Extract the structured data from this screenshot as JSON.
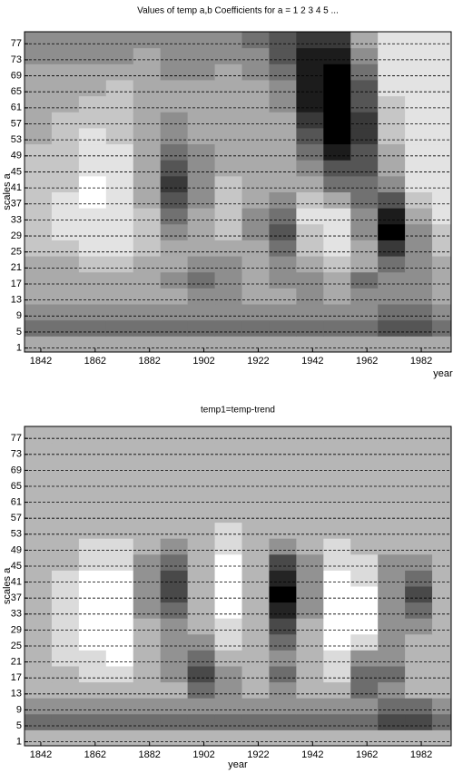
{
  "chart_data": [
    {
      "type": "heatmap",
      "title": "Values of temp a,b Coefficients for a =  1 2 3 4 5 ...",
      "xlabel": "year",
      "ylabel": "scales a",
      "colormap": "gray",
      "grid": true,
      "x": [
        1841,
        1851,
        1861,
        1871,
        1881,
        1891,
        1901,
        1911,
        1921,
        1931,
        1941,
        1951,
        1961,
        1971,
        1981,
        1991
      ],
      "y": [
        2,
        6,
        10,
        14,
        18,
        22,
        26,
        30,
        34,
        38,
        42,
        46,
        50,
        54,
        58,
        62,
        66,
        70,
        74,
        78
      ],
      "values": [
        [
          3,
          3,
          3,
          3,
          3,
          3,
          3,
          3,
          3,
          3,
          3,
          3,
          3,
          3,
          3,
          3
        ],
        [
          5,
          5,
          5,
          5,
          5,
          5,
          5,
          5,
          5,
          5,
          5,
          5,
          5,
          6,
          6,
          5
        ],
        [
          4,
          4,
          4,
          4,
          4,
          4,
          4,
          4,
          4,
          4,
          4,
          4,
          4,
          5,
          5,
          4
        ],
        [
          3,
          3,
          3,
          3,
          3,
          3,
          4,
          4,
          3,
          3,
          4,
          3,
          4,
          4,
          4,
          3
        ],
        [
          3,
          3,
          3,
          3,
          3,
          4,
          5,
          4,
          3,
          4,
          4,
          3,
          5,
          4,
          4,
          3
        ],
        [
          3,
          3,
          2,
          2,
          3,
          3,
          4,
          4,
          3,
          4,
          3,
          2,
          3,
          5,
          4,
          3
        ],
        [
          2,
          2,
          1,
          1,
          2,
          3,
          3,
          3,
          3,
          5,
          2,
          1,
          3,
          7,
          4,
          2
        ],
        [
          2,
          1,
          1,
          1,
          2,
          4,
          3,
          2,
          4,
          6,
          2,
          1,
          4,
          9,
          4,
          2
        ],
        [
          2,
          1,
          1,
          1,
          2,
          5,
          3,
          2,
          4,
          5,
          1,
          1,
          4,
          8,
          3,
          1
        ],
        [
          2,
          1,
          0,
          1,
          3,
          6,
          4,
          2,
          3,
          4,
          2,
          3,
          5,
          6,
          2,
          1
        ],
        [
          2,
          2,
          0,
          1,
          3,
          7,
          4,
          2,
          3,
          3,
          3,
          5,
          5,
          4,
          1,
          1
        ],
        [
          2,
          2,
          1,
          1,
          3,
          6,
          4,
          3,
          3,
          3,
          4,
          6,
          6,
          3,
          1,
          1
        ],
        [
          2,
          2,
          1,
          1,
          3,
          5,
          4,
          3,
          3,
          3,
          5,
          8,
          6,
          3,
          1,
          1
        ],
        [
          3,
          2,
          1,
          2,
          3,
          4,
          3,
          3,
          3,
          3,
          6,
          9,
          7,
          2,
          1,
          1
        ],
        [
          3,
          2,
          2,
          2,
          3,
          4,
          3,
          3,
          3,
          3,
          7,
          9,
          7,
          2,
          1,
          1
        ],
        [
          3,
          3,
          2,
          2,
          3,
          3,
          3,
          3,
          3,
          4,
          8,
          9,
          6,
          2,
          1,
          1
        ],
        [
          3,
          3,
          3,
          2,
          3,
          3,
          3,
          3,
          3,
          4,
          8,
          9,
          6,
          1,
          1,
          1
        ],
        [
          3,
          3,
          3,
          3,
          3,
          4,
          4,
          3,
          4,
          5,
          8,
          9,
          5,
          1,
          1,
          1
        ],
        [
          4,
          4,
          4,
          4,
          3,
          4,
          4,
          4,
          4,
          6,
          8,
          8,
          4,
          1,
          1,
          1
        ],
        [
          4,
          4,
          4,
          4,
          4,
          4,
          4,
          4,
          5,
          6,
          7,
          7,
          3,
          1,
          1,
          1
        ]
      ],
      "xlim": [
        1836,
        1993
      ],
      "ylim": [
        0,
        80
      ],
      "xticks": [
        1842,
        1862,
        1882,
        1902,
        1922,
        1942,
        1962,
        1982
      ],
      "yticks": [
        1,
        5,
        9,
        13,
        17,
        21,
        25,
        29,
        33,
        37,
        41,
        45,
        49,
        53,
        57,
        61,
        65,
        69,
        73,
        77
      ]
    },
    {
      "type": "heatmap",
      "title": "temp1=temp-trend",
      "xlabel": "year",
      "ylabel": "scales a",
      "colormap": "gray",
      "grid": true,
      "x": [
        1841,
        1851,
        1861,
        1871,
        1881,
        1891,
        1901,
        1911,
        1921,
        1931,
        1941,
        1951,
        1961,
        1971,
        1981,
        1991
      ],
      "y": [
        2,
        6,
        10,
        14,
        18,
        22,
        26,
        30,
        34,
        38,
        42,
        46,
        50,
        54,
        58,
        62,
        66,
        70,
        74,
        78
      ],
      "values": [
        [
          3,
          3,
          3,
          3,
          3,
          3,
          3,
          3,
          3,
          3,
          3,
          3,
          3,
          3,
          3,
          3
        ],
        [
          5,
          5,
          5,
          5,
          5,
          5,
          5,
          5,
          5,
          5,
          5,
          5,
          5,
          6,
          6,
          5
        ],
        [
          4,
          4,
          4,
          4,
          4,
          4,
          4,
          4,
          4,
          4,
          4,
          4,
          4,
          5,
          5,
          4
        ],
        [
          3,
          3,
          3,
          3,
          3,
          3,
          5,
          4,
          3,
          4,
          3,
          3,
          5,
          4,
          3,
          3
        ],
        [
          3,
          3,
          2,
          2,
          3,
          4,
          6,
          4,
          3,
          5,
          3,
          2,
          5,
          5,
          3,
          3
        ],
        [
          3,
          2,
          2,
          1,
          3,
          4,
          5,
          3,
          3,
          4,
          3,
          2,
          4,
          4,
          3,
          3
        ],
        [
          3,
          2,
          1,
          1,
          3,
          4,
          4,
          2,
          3,
          5,
          3,
          1,
          2,
          4,
          3,
          3
        ],
        [
          3,
          2,
          1,
          1,
          3,
          4,
          3,
          2,
          3,
          6,
          3,
          1,
          1,
          4,
          4,
          3
        ],
        [
          3,
          2,
          1,
          1,
          4,
          5,
          3,
          1,
          3,
          7,
          4,
          1,
          1,
          4,
          5,
          3
        ],
        [
          3,
          2,
          1,
          1,
          4,
          6,
          3,
          1,
          3,
          8,
          4,
          1,
          1,
          4,
          6,
          3
        ],
        [
          3,
          2,
          1,
          1,
          4,
          6,
          3,
          1,
          3,
          7,
          4,
          1,
          2,
          4,
          5,
          3
        ],
        [
          3,
          3,
          2,
          2,
          4,
          5,
          3,
          1,
          3,
          6,
          4,
          2,
          2,
          4,
          4,
          3
        ],
        [
          3,
          3,
          2,
          2,
          3,
          4,
          3,
          2,
          3,
          4,
          3,
          2,
          3,
          3,
          3,
          3
        ],
        [
          3,
          3,
          3,
          3,
          3,
          3,
          3,
          2,
          3,
          3,
          3,
          3,
          3,
          3,
          3,
          3
        ],
        [
          3,
          3,
          3,
          3,
          3,
          3,
          3,
          3,
          3,
          3,
          3,
          3,
          3,
          3,
          3,
          3
        ],
        [
          3,
          3,
          3,
          3,
          3,
          3,
          3,
          3,
          3,
          3,
          3,
          3,
          3,
          3,
          3,
          3
        ],
        [
          3,
          3,
          3,
          3,
          3,
          3,
          3,
          3,
          3,
          3,
          3,
          3,
          3,
          3,
          3,
          3
        ],
        [
          3,
          3,
          3,
          3,
          3,
          3,
          3,
          3,
          3,
          3,
          3,
          3,
          3,
          3,
          3,
          3
        ],
        [
          3,
          3,
          3,
          3,
          3,
          3,
          3,
          3,
          3,
          3,
          3,
          3,
          3,
          3,
          3,
          3
        ],
        [
          3,
          3,
          3,
          3,
          3,
          3,
          3,
          3,
          3,
          3,
          3,
          3,
          3,
          3,
          3,
          3
        ]
      ],
      "xlim": [
        1836,
        1993
      ],
      "ylim": [
        0,
        80
      ],
      "xticks": [
        1842,
        1862,
        1882,
        1902,
        1922,
        1942,
        1962,
        1982
      ],
      "yticks": [
        1,
        5,
        9,
        13,
        17,
        21,
        25,
        29,
        33,
        37,
        41,
        45,
        49,
        53,
        57,
        61,
        65,
        69,
        73,
        77
      ]
    }
  ]
}
